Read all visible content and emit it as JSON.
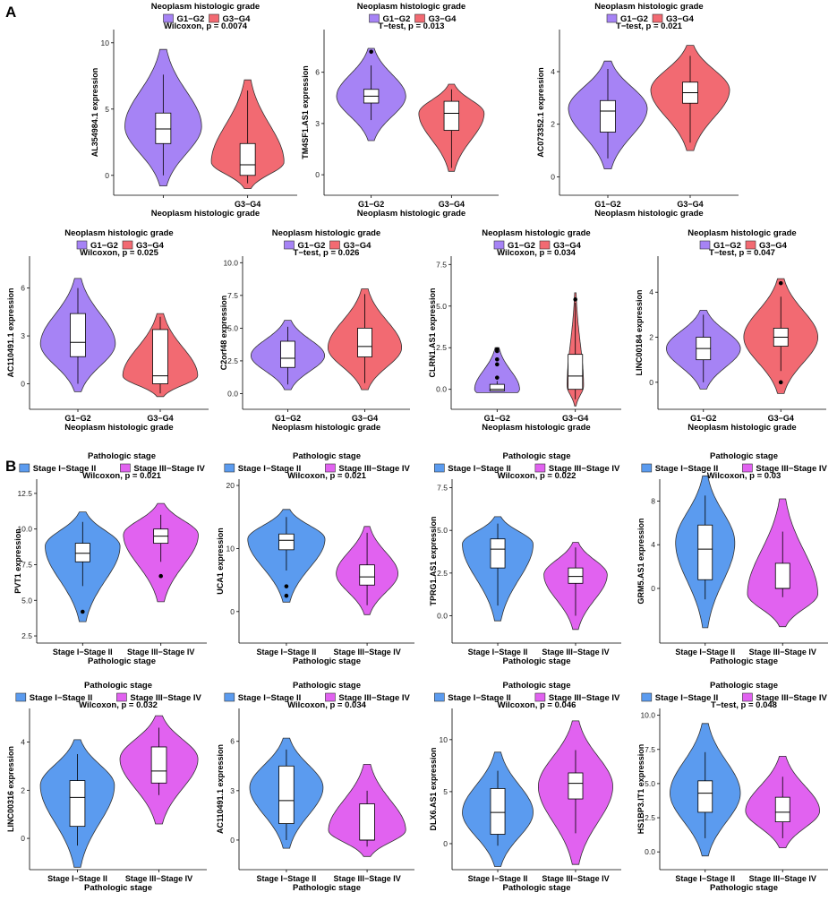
{
  "figure": {
    "label_a": "A",
    "label_b": "B"
  },
  "chart_data": [
    {
      "type": "violin",
      "panel": "A",
      "title": "Neoplasm histologic grade",
      "legend": [
        "G1−G2",
        "G3−G4"
      ],
      "colors": [
        "#A683F5",
        "#F26A72"
      ],
      "stat": "Wilcoxon, p = 0.0074",
      "xlabel": "Neoplasm histologic grade",
      "ylabel": "AL354984.1 expression",
      "categories": [
        "",
        "G3−G4"
      ],
      "ylim": [
        -1.5,
        11
      ],
      "yticks": [
        0,
        5,
        10
      ],
      "tick_decimals": 0,
      "groups": [
        {
          "median": 3.5,
          "q1": 2.4,
          "q3": 4.7,
          "wlo": 0.0,
          "whi": 7.6,
          "min": -0.8,
          "max": 9.5,
          "peak": 3.7,
          "width": 0.95,
          "outliers": []
        },
        {
          "median": 0.8,
          "q1": 0.0,
          "q3": 2.4,
          "wlo": -0.6,
          "whi": 6.4,
          "min": -1.0,
          "max": 7.2,
          "peak": 1.0,
          "width": 0.9,
          "outliers": []
        }
      ]
    },
    {
      "type": "violin",
      "panel": "A",
      "title": "Neoplasm histologic grade",
      "legend": [
        "G1−G2",
        "G3−G4"
      ],
      "colors": [
        "#A683F5",
        "#F26A72"
      ],
      "stat": "T−test, p = 0.013",
      "xlabel": "Neoplasm histologic grade",
      "ylabel": "TM4SF1.AS1 expression",
      "categories": [
        "G1−G2",
        "G3−G4"
      ],
      "ylim": [
        -1.2,
        8.5
      ],
      "yticks": [
        0,
        3,
        6
      ],
      "tick_decimals": 0,
      "groups": [
        {
          "median": 4.6,
          "q1": 4.2,
          "q3": 5.0,
          "wlo": 3.2,
          "whi": 6.4,
          "min": 2.0,
          "max": 7.4,
          "peak": 4.6,
          "width": 0.9,
          "outliers": [
            7.2
          ]
        },
        {
          "median": 3.6,
          "q1": 2.6,
          "q3": 4.3,
          "wlo": 0.4,
          "whi": 5.0,
          "min": 0.2,
          "max": 5.3,
          "peak": 3.6,
          "width": 0.85,
          "outliers": []
        }
      ]
    },
    {
      "type": "violin",
      "panel": "A",
      "title": "Neoplasm histologic grade",
      "legend": [
        "G1−G2",
        "G3−G4"
      ],
      "colors": [
        "#A683F5",
        "#F26A72"
      ],
      "stat": "T−test, p = 0.021",
      "xlabel": "Neoplasm histologic grade",
      "ylabel": "AC073352.1 expression",
      "categories": [
        "G1−G2",
        "G3−G4"
      ],
      "ylim": [
        -0.7,
        5.6
      ],
      "yticks": [
        0,
        2,
        4
      ],
      "tick_decimals": 0,
      "groups": [
        {
          "median": 2.5,
          "q1": 1.7,
          "q3": 2.9,
          "wlo": 0.7,
          "whi": 4.1,
          "min": 0.3,
          "max": 4.4,
          "peak": 2.6,
          "width": 1.0,
          "outliers": []
        },
        {
          "median": 3.2,
          "q1": 2.8,
          "q3": 3.6,
          "wlo": 1.3,
          "whi": 4.6,
          "min": 1.0,
          "max": 5.0,
          "peak": 3.3,
          "width": 1.0,
          "outliers": []
        }
      ]
    },
    {
      "type": "violin",
      "panel": "A",
      "title": "Neoplasm histologic grade",
      "legend": [
        "G1−G2",
        "G3−G4"
      ],
      "colors": [
        "#A683F5",
        "#F26A72"
      ],
      "stat": "Wilcoxon, p = 0.025",
      "xlabel": "Neoplasm histologic grade",
      "ylabel": "AC110491.1 expression",
      "categories": [
        "G1−G2",
        "G3−G4"
      ],
      "ylim": [
        -1.6,
        8
      ],
      "yticks": [
        0,
        3,
        6
      ],
      "tick_decimals": 0,
      "groups": [
        {
          "median": 2.6,
          "q1": 1.7,
          "q3": 4.4,
          "wlo": 0.0,
          "whi": 6.0,
          "min": -0.5,
          "max": 6.6,
          "peak": 2.5,
          "width": 0.95,
          "outliers": []
        },
        {
          "median": 0.5,
          "q1": 0.0,
          "q3": 3.4,
          "wlo": -0.6,
          "whi": 4.2,
          "min": -0.8,
          "max": 4.4,
          "peak": 0.5,
          "width": 0.95,
          "outliers": []
        }
      ]
    },
    {
      "type": "violin",
      "panel": "A",
      "title": "Neoplasm histologic grade",
      "legend": [
        "G1−G2",
        "G3−G4"
      ],
      "colors": [
        "#A683F5",
        "#F26A72"
      ],
      "stat": "T−test, p = 0.026",
      "xlabel": "Neoplasm histologic grade",
      "ylabel": "C2orf48 expression",
      "categories": [
        "G1−G2",
        "G3−G4"
      ],
      "ylim": [
        -1.2,
        10.5
      ],
      "yticks": [
        0.0,
        2.5,
        5.0,
        7.5,
        10.0
      ],
      "tick_decimals": 1,
      "groups": [
        {
          "median": 2.7,
          "q1": 2.0,
          "q3": 4.0,
          "wlo": 0.7,
          "whi": 5.1,
          "min": 0.3,
          "max": 5.6,
          "peak": 2.9,
          "width": 1.0,
          "outliers": []
        },
        {
          "median": 3.6,
          "q1": 2.8,
          "q3": 5.0,
          "wlo": 0.8,
          "whi": 7.6,
          "min": 0.3,
          "max": 8.0,
          "peak": 3.5,
          "width": 1.0,
          "outliers": []
        }
      ]
    },
    {
      "type": "violin",
      "panel": "A",
      "title": "Neoplasm histologic grade",
      "legend": [
        "G1−G2",
        "G3−G4"
      ],
      "colors": [
        "#A683F5",
        "#F26A72"
      ],
      "stat": "Wilcoxon, p = 0.034",
      "xlabel": "Neoplasm histologic grade",
      "ylabel": "CLRN1.AS1 expression",
      "categories": [
        "G1−G2",
        "G3−G4"
      ],
      "ylim": [
        -1.2,
        8
      ],
      "yticks": [
        0.0,
        2.5,
        5.0,
        7.5
      ],
      "tick_decimals": 1,
      "groups": [
        {
          "median": 0.0,
          "q1": -0.1,
          "q3": 0.3,
          "wlo": -0.1,
          "whi": 0.5,
          "min": -0.2,
          "max": 2.5,
          "peak": 0.0,
          "width": 0.6,
          "outliers": [
            0.7,
            1.5,
            1.8,
            2.3,
            2.4
          ]
        },
        {
          "median": 0.8,
          "q1": 0.0,
          "q3": 2.1,
          "wlo": -0.6,
          "whi": 5.2,
          "min": -1.0,
          "max": 5.8,
          "peak": 0.2,
          "width": 0.22,
          "outliers": [
            5.4
          ]
        }
      ]
    },
    {
      "type": "violin",
      "panel": "A",
      "title": "Neoplasm histologic grade",
      "legend": [
        "G1−G2",
        "G3−G4"
      ],
      "colors": [
        "#A683F5",
        "#F26A72"
      ],
      "stat": "T−test, p = 0.047",
      "xlabel": "Neoplasm histologic grade",
      "ylabel": "LINC00184 expression",
      "categories": [
        "G1−G2",
        "G3−G4"
      ],
      "ylim": [
        -1.2,
        5.6
      ],
      "yticks": [
        0,
        2,
        4
      ],
      "tick_decimals": 0,
      "groups": [
        {
          "median": 1.5,
          "q1": 1.0,
          "q3": 2.0,
          "wlo": 0.0,
          "whi": 3.0,
          "min": -0.3,
          "max": 3.2,
          "peak": 1.5,
          "width": 1.0,
          "outliers": []
        },
        {
          "median": 2.0,
          "q1": 1.6,
          "q3": 2.4,
          "wlo": 0.5,
          "whi": 3.8,
          "min": -0.5,
          "max": 4.6,
          "peak": 2.0,
          "width": 1.0,
          "outliers": [
            4.4,
            0.0
          ]
        }
      ]
    },
    {
      "type": "violin",
      "panel": "B",
      "title": "Pathologic stage",
      "legend": [
        "Stage I−Stage II",
        "Stage III−Stage IV"
      ],
      "colors": [
        "#5B9BEF",
        "#E162F0"
      ],
      "stat": "Wilcoxon, p = 0.021",
      "xlabel": "Pathologic stage",
      "ylabel": "PVT1 expression",
      "categories": [
        "Stage I−Stage II",
        "Stage III−Stage IV"
      ],
      "ylim": [
        2,
        13.5
      ],
      "yticks": [
        2.5,
        5.0,
        7.5,
        10.0,
        12.5
      ],
      "tick_decimals": 1,
      "groups": [
        {
          "median": 8.3,
          "q1": 7.7,
          "q3": 9.0,
          "wlo": 6.0,
          "whi": 10.5,
          "min": 3.5,
          "max": 11.2,
          "peak": 8.8,
          "width": 1.0,
          "outliers": [
            4.2
          ]
        },
        {
          "median": 9.5,
          "q1": 9.0,
          "q3": 10.0,
          "wlo": 7.7,
          "whi": 11.0,
          "min": 4.9,
          "max": 11.8,
          "peak": 9.6,
          "width": 1.0,
          "outliers": [
            6.7
          ]
        }
      ]
    },
    {
      "type": "violin",
      "panel": "B",
      "title": "Pathologic stage",
      "legend": [
        "Stage I−Stage II",
        "Stage III−Stage IV"
      ],
      "colors": [
        "#5B9BEF",
        "#E162F0"
      ],
      "stat": "Wilcoxon, p = 0.021",
      "xlabel": "Pathologic stage",
      "ylabel": "UCA1 expression",
      "categories": [
        "Stage I−Stage II",
        "Stage III−Stage IV"
      ],
      "ylim": [
        -5,
        21
      ],
      "yticks": [
        0,
        10,
        20
      ],
      "tick_decimals": 0,
      "groups": [
        {
          "median": 11.3,
          "q1": 9.8,
          "q3": 12.3,
          "wlo": 6.5,
          "whi": 15.0,
          "min": 1.5,
          "max": 16.2,
          "peak": 11.5,
          "width": 1.0,
          "outliers": [
            4.0,
            2.5
          ]
        },
        {
          "median": 5.5,
          "q1": 4.2,
          "q3": 7.4,
          "wlo": 1.0,
          "whi": 12.5,
          "min": -0.5,
          "max": 13.5,
          "peak": 6.0,
          "width": 0.8,
          "outliers": []
        }
      ]
    },
    {
      "type": "violin",
      "panel": "B",
      "title": "Pathologic stage",
      "legend": [
        "Stage I−Stage II",
        "Stage III−Stage IV"
      ],
      "colors": [
        "#5B9BEF",
        "#E162F0"
      ],
      "stat": "Wilcoxon, p = 0.022",
      "xlabel": "Pathologic stage",
      "ylabel": "TPRG1.AS1 expression",
      "categories": [
        "Stage I−Stage II",
        "Stage III−Stage IV"
      ],
      "ylim": [
        -1.6,
        8
      ],
      "yticks": [
        0.0,
        2.5,
        5.0,
        7.5
      ],
      "tick_decimals": 1,
      "groups": [
        {
          "median": 3.9,
          "q1": 2.8,
          "q3": 4.5,
          "wlo": 0.6,
          "whi": 5.4,
          "min": -0.3,
          "max": 5.8,
          "peak": 4.2,
          "width": 0.95,
          "outliers": []
        },
        {
          "median": 2.3,
          "q1": 1.9,
          "q3": 2.8,
          "wlo": 0.0,
          "whi": 4.0,
          "min": -0.8,
          "max": 4.3,
          "peak": 2.4,
          "width": 0.85,
          "outliers": []
        }
      ]
    },
    {
      "type": "violin",
      "panel": "B",
      "title": "Pathologic stage",
      "legend": [
        "Stage I−Stage II",
        "Stage III−Stage IV"
      ],
      "colors": [
        "#5B9BEF",
        "#E162F0"
      ],
      "stat": "Wilcoxon, p = 0.03",
      "xlabel": "Pathologic stage",
      "ylabel": "GRM5.AS1 expression",
      "categories": [
        "Stage I−Stage II",
        "Stage III−Stage IV"
      ],
      "ylim": [
        -5,
        10
      ],
      "yticks": [
        0,
        4,
        8
      ],
      "tick_decimals": 0,
      "groups": [
        {
          "median": 3.6,
          "q1": 0.8,
          "q3": 5.8,
          "wlo": -1.0,
          "whi": 8.5,
          "min": -3.6,
          "max": 10.3,
          "peak": 4.2,
          "width": 0.8,
          "outliers": []
        },
        {
          "median": 0.0,
          "q1": 0.0,
          "q3": 2.3,
          "wlo": -0.8,
          "whi": 5.2,
          "min": -3.5,
          "max": 8.2,
          "peak": -0.5,
          "width": 0.95,
          "outliers": []
        }
      ]
    },
    {
      "type": "violin",
      "panel": "B",
      "title": "Pathologic stage",
      "legend": [
        "Stage I−Stage II",
        "Stage III−Stage IV"
      ],
      "colors": [
        "#5B9BEF",
        "#E162F0"
      ],
      "stat": "Wilcoxon, p = 0.032",
      "xlabel": "Pathologic stage",
      "ylabel": "LINC00316 expression",
      "categories": [
        "Stage I−Stage II",
        "Stage III−Stage IV"
      ],
      "ylim": [
        -1.3,
        5.4
      ],
      "yticks": [
        0,
        2,
        4
      ],
      "tick_decimals": 0,
      "groups": [
        {
          "median": 1.7,
          "q1": 0.5,
          "q3": 2.4,
          "wlo": -0.3,
          "whi": 3.5,
          "min": -1.2,
          "max": 4.1,
          "peak": 2.2,
          "width": 0.95,
          "outliers": []
        },
        {
          "median": 2.8,
          "q1": 2.3,
          "q3": 3.8,
          "wlo": 1.8,
          "whi": 4.6,
          "min": 0.6,
          "max": 5.1,
          "peak": 3.3,
          "width": 1.0,
          "outliers": []
        }
      ]
    },
    {
      "type": "violin",
      "panel": "B",
      "title": "Pathologic stage",
      "legend": [
        "Stage I−Stage II",
        "Stage III−Stage IV"
      ],
      "colors": [
        "#5B9BEF",
        "#E162F0"
      ],
      "stat": "Wilcoxon, p = 0.034",
      "xlabel": "Pathologic stage",
      "ylabel": "AC110491.1 expression",
      "categories": [
        "Stage I−Stage II",
        "Stage III−Stage IV"
      ],
      "ylim": [
        -1.8,
        8
      ],
      "yticks": [
        0,
        3,
        6
      ],
      "tick_decimals": 0,
      "groups": [
        {
          "median": 2.4,
          "q1": 1.0,
          "q3": 4.5,
          "wlo": 0.0,
          "whi": 5.5,
          "min": -0.5,
          "max": 6.2,
          "peak": 3.2,
          "width": 0.95,
          "outliers": []
        },
        {
          "median": 0.0,
          "q1": 0.0,
          "q3": 2.2,
          "wlo": -0.4,
          "whi": 3.0,
          "min": -1.0,
          "max": 4.6,
          "peak": 0.6,
          "width": 1.0,
          "outliers": []
        }
      ]
    },
    {
      "type": "violin",
      "panel": "B",
      "title": "Pathologic stage",
      "legend": [
        "Stage I−Stage II",
        "Stage III−Stage IV"
      ],
      "colors": [
        "#5B9BEF",
        "#E162F0"
      ],
      "stat": "Wilcoxon, p = 0.046",
      "xlabel": "Pathologic stage",
      "ylabel": "DLX6.AS1 expression",
      "categories": [
        "Stage I−Stage II",
        "Stage III−Stage IV"
      ],
      "ylim": [
        -2.5,
        13
      ],
      "yticks": [
        0,
        5,
        10
      ],
      "tick_decimals": 0,
      "groups": [
        {
          "median": 3.0,
          "q1": 0.9,
          "q3": 5.3,
          "wlo": -0.2,
          "whi": 7.0,
          "min": -2.2,
          "max": 8.8,
          "peak": 3.0,
          "width": 0.95,
          "outliers": []
        },
        {
          "median": 5.8,
          "q1": 4.3,
          "q3": 6.8,
          "wlo": 1.0,
          "whi": 9.0,
          "min": -2.0,
          "max": 11.8,
          "peak": 5.5,
          "width": 1.0,
          "outliers": []
        }
      ]
    },
    {
      "type": "violin",
      "panel": "B",
      "title": "Pathologic stage",
      "legend": [
        "Stage I−Stage II",
        "Stage III−Stage IV"
      ],
      "colors": [
        "#5B9BEF",
        "#E162F0"
      ],
      "stat": "T−test, p = 0.048",
      "xlabel": "Pathologic stage",
      "ylabel": "HS1BP3.IT1 expression",
      "categories": [
        "Stage I−Stage II",
        "Stage III−Stage IV"
      ],
      "ylim": [
        -1.3,
        10.5
      ],
      "yticks": [
        0.0,
        2.5,
        5.0,
        7.5,
        10.0
      ],
      "tick_decimals": 1,
      "groups": [
        {
          "median": 4.3,
          "q1": 2.9,
          "q3": 5.2,
          "wlo": 1.0,
          "whi": 7.3,
          "min": -0.3,
          "max": 9.4,
          "peak": 4.3,
          "width": 0.95,
          "outliers": []
        },
        {
          "median": 2.9,
          "q1": 2.2,
          "q3": 4.0,
          "wlo": 1.0,
          "whi": 5.5,
          "min": 0.3,
          "max": 7.0,
          "peak": 3.0,
          "width": 1.0,
          "outliers": []
        }
      ]
    }
  ]
}
